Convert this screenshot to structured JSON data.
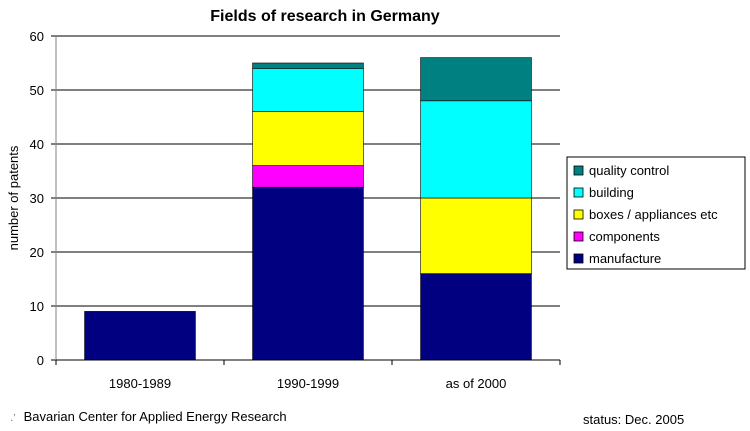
{
  "chart_data": {
    "type": "bar",
    "stacked": true,
    "title": "Fields of research in Germany",
    "xlabel": "",
    "ylabel": "number of patents",
    "ylim": [
      0,
      60
    ],
    "yticks": [
      0,
      10,
      20,
      30,
      40,
      50,
      60
    ],
    "grid": true,
    "legend_position": "right",
    "categories": [
      "1980-1989",
      "1990-1999",
      "as of 2000"
    ],
    "series": [
      {
        "name": "manufacture",
        "color": "#000080",
        "values": [
          9,
          32,
          16
        ]
      },
      {
        "name": "components",
        "color": "#ff00ff",
        "values": [
          0,
          4,
          0
        ]
      },
      {
        "name": "boxes / appliances etc",
        "color": "#ffff00",
        "values": [
          0,
          10,
          14
        ]
      },
      {
        "name": "building",
        "color": "#00ffff",
        "values": [
          0,
          8,
          18
        ]
      },
      {
        "name": "quality control",
        "color": "#008080",
        "values": [
          0,
          1,
          8
        ]
      }
    ]
  },
  "footer": {
    "source": "Bavarian Center for Applied Energy Research",
    "status": "status: Dec. 2005"
  }
}
